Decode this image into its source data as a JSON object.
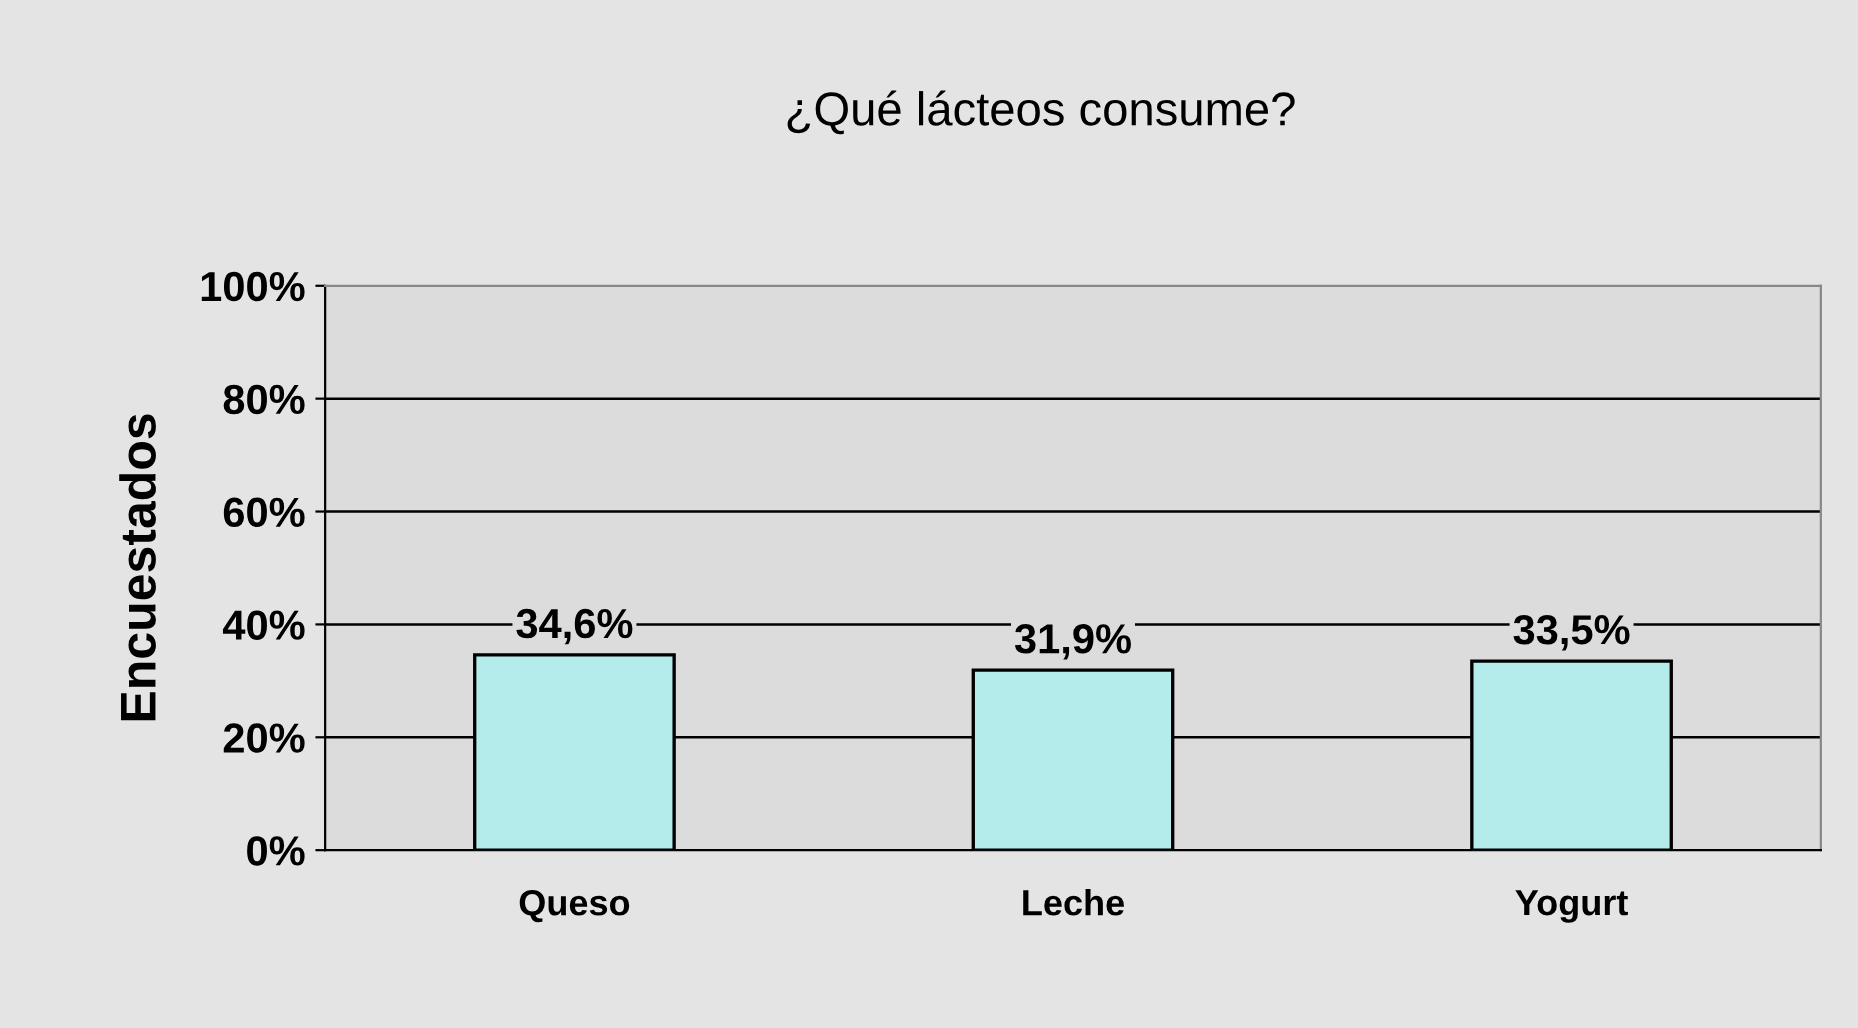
{
  "chart_data": {
    "type": "bar",
    "title": "¿Qué lácteos consume?",
    "ylabel": "Encuestados",
    "categories": [
      "Queso",
      "Leche",
      "Yogurt"
    ],
    "values": [
      34.6,
      31.9,
      33.5
    ],
    "value_labels": [
      "34,6%",
      "31,9%",
      "33,5%"
    ],
    "color": "#b4ecec",
    "ylim": [
      0,
      100
    ],
    "yticks": [
      {
        "value": 0,
        "label": "0%"
      },
      {
        "value": 20,
        "label": "20%"
      },
      {
        "value": 40,
        "label": "40%"
      },
      {
        "value": 60,
        "label": "60%"
      },
      {
        "value": 80,
        "label": "80%"
      },
      {
        "value": 100,
        "label": "100%"
      }
    ],
    "grid": "y"
  }
}
